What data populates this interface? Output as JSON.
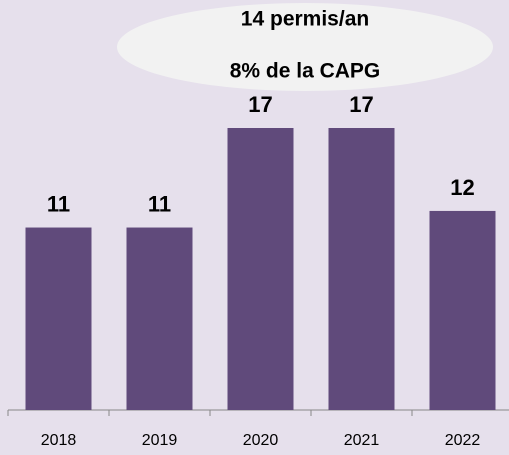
{
  "chart_data": {
    "type": "bar",
    "categories": [
      "2018",
      "2019",
      "2020",
      "2021",
      "2022"
    ],
    "values": [
      11,
      11,
      17,
      17,
      12
    ],
    "color": "#604a7b",
    "annotation": [
      "14 permis/an",
      "8% de la CAPG"
    ]
  }
}
